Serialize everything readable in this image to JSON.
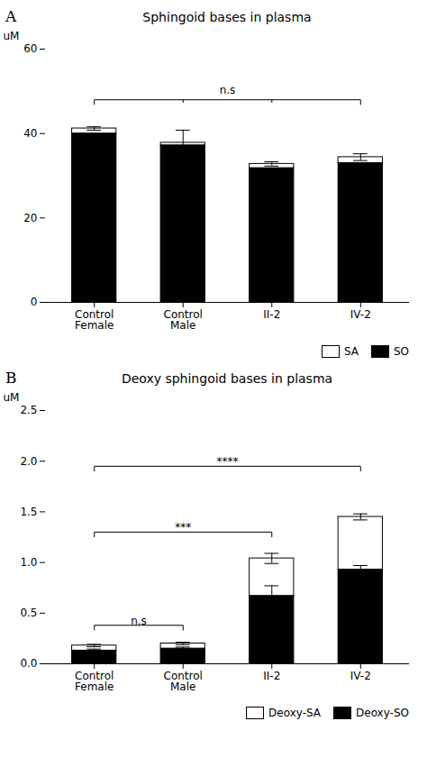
{
  "chart_data": [
    {
      "type": "bar",
      "stacked": true,
      "title": "Sphingoid bases in plasma",
      "ylabel": "uM",
      "ylim": [
        0,
        60
      ],
      "yticks": [
        0,
        20,
        40,
        60
      ],
      "grid": false,
      "legend": "lower right",
      "categories": [
        "Control\nFemale",
        "Control\nMale",
        "II-2",
        "IV-2"
      ],
      "series": [
        {
          "name": "SO",
          "color": "black",
          "values": [
            40.0,
            37.2,
            31.8,
            33.0
          ]
        },
        {
          "name": "SA",
          "color": "white",
          "values": [
            1.2,
            0.6,
            1.0,
            1.4
          ],
          "errors": [
            0.4,
            3.0,
            0.5,
            0.8
          ]
        }
      ],
      "annotations": [
        {
          "label": "A"
        },
        {
          "label": "n.s",
          "x1": "Control\nFemale",
          "x2": "IV-2",
          "y": 48,
          "label_y": 49.5,
          "ticks": [
            "Control\nMale",
            "II-2"
          ]
        }
      ]
    },
    {
      "type": "bar",
      "stacked": true,
      "title": "Deoxy sphingoid bases in plasma",
      "ylabel": "uM",
      "ylim": [
        0,
        2.5
      ],
      "yticks": [
        {
          "value": 0,
          "label": "0.0"
        },
        0.5,
        {
          "value": 1,
          "label": "1.0"
        },
        1.5,
        {
          "value": 2,
          "label": "2.0"
        },
        2.5
      ],
      "grid": false,
      "legend": "lower right",
      "categories": [
        "Control\nFemale",
        "Control\nMale",
        "II-2",
        "IV-2"
      ],
      "series": [
        {
          "name": "Deoxy-SO",
          "color": "black",
          "values": [
            0.13,
            0.15,
            0.67,
            0.93
          ],
          "errors": [
            0.015,
            0.015,
            0.1,
            0.04
          ]
        },
        {
          "name": "Deoxy-SA",
          "color": "white",
          "values": [
            0.05,
            0.05,
            0.37,
            0.52
          ],
          "errors": [
            0.012,
            0.012,
            0.05,
            0.03
          ]
        }
      ],
      "annotations": [
        {
          "label": "B"
        },
        {
          "label": "n.s",
          "x1": "Control\nFemale",
          "x2": "Control\nMale",
          "y": 0.38,
          "label_y": 0.39
        },
        {
          "label": "***",
          "x1": "Control\nFemale",
          "x2": "II-2",
          "y": 1.3,
          "label_y": 1.315
        },
        {
          "label": "****",
          "x1": "Control\nFemale",
          "x2": "IV-2",
          "y": 1.95,
          "label_y": 1.965
        }
      ]
    }
  ]
}
